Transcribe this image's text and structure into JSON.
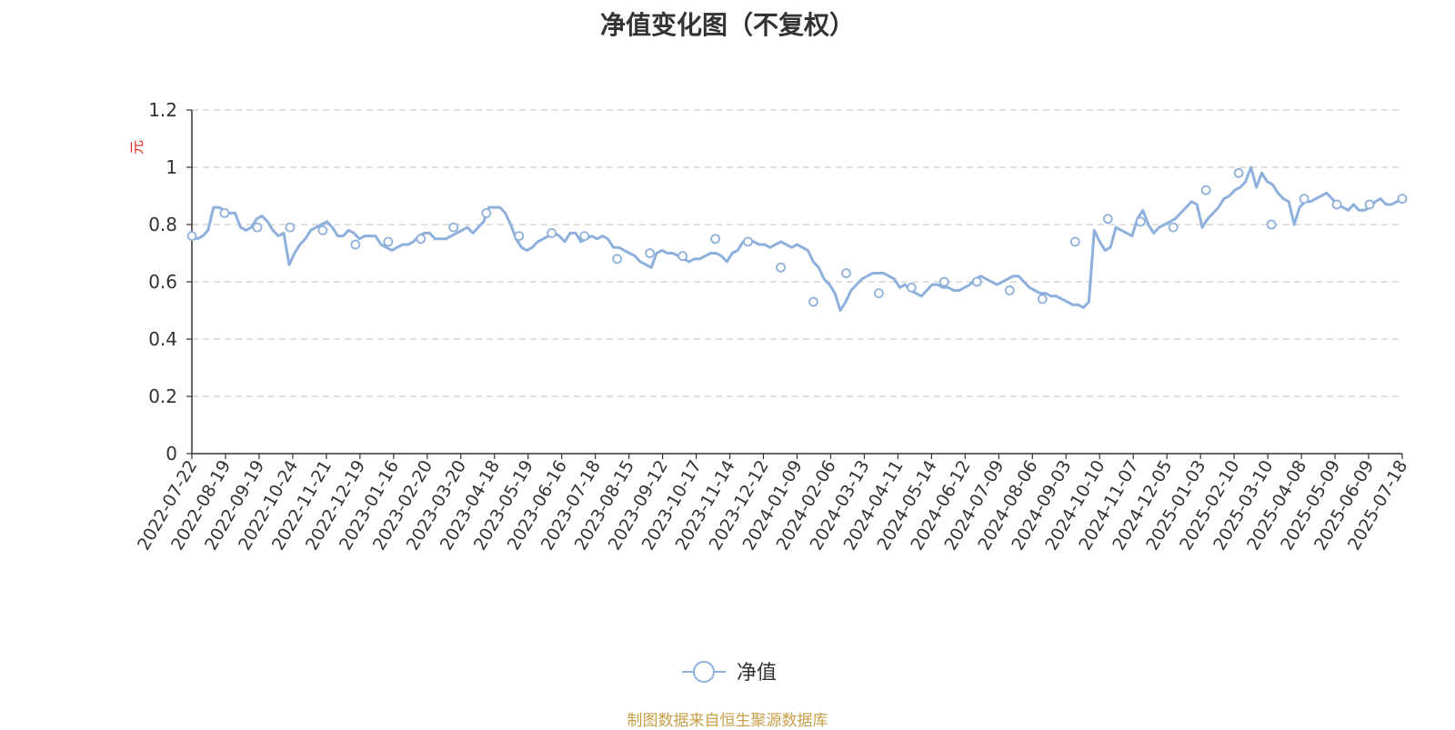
{
  "chart_data": {
    "type": "line",
    "title": "净值变化图（不复权）",
    "ylabel": "元",
    "ylim": [
      0,
      1.2
    ],
    "yticks": [
      0,
      0.2,
      0.4,
      0.6,
      0.8,
      1,
      1.2
    ],
    "grid": true,
    "legend": {
      "position": "bottom-center",
      "label": "净值"
    },
    "x_ticks": [
      "2022-07-22",
      "2022-08-19",
      "2022-09-19",
      "2022-10-24",
      "2022-11-21",
      "2022-12-19",
      "2023-01-16",
      "2023-02-20",
      "2023-03-20",
      "2023-04-18",
      "2023-05-19",
      "2023-06-16",
      "2023-07-18",
      "2023-08-15",
      "2023-09-12",
      "2023-10-17",
      "2023-11-14",
      "2023-12-12",
      "2024-01-09",
      "2024-02-06",
      "2024-03-13",
      "2024-04-11",
      "2024-05-14",
      "2024-06-12",
      "2024-07-09",
      "2024-08-06",
      "2024-09-03",
      "2024-10-10",
      "2024-11-07",
      "2024-12-05",
      "2025-01-03",
      "2025-02-10",
      "2025-03-10",
      "2025-04-08",
      "2025-05-09",
      "2025-06-09",
      "2025-07-18"
    ],
    "series": [
      {
        "name": "净值",
        "color": "#8eb0dc",
        "marker_values": [
          0.76,
          0.84,
          0.79,
          0.79,
          0.78,
          0.73,
          0.74,
          0.75,
          0.79,
          0.84,
          0.76,
          0.77,
          0.76,
          0.68,
          0.7,
          0.69,
          0.75,
          0.74,
          0.65,
          0.53,
          0.63,
          0.56,
          0.58,
          0.6,
          0.6,
          0.57,
          0.54,
          0.74,
          0.82,
          0.81,
          0.79,
          0.92,
          0.98,
          0.8,
          0.89,
          0.87,
          0.87,
          0.89
        ],
        "values": [
          0.76,
          0.75,
          0.76,
          0.78,
          0.86,
          0.86,
          0.85,
          0.84,
          0.84,
          0.79,
          0.78,
          0.79,
          0.82,
          0.83,
          0.81,
          0.78,
          0.76,
          0.77,
          0.66,
          0.7,
          0.73,
          0.75,
          0.78,
          0.79,
          0.8,
          0.81,
          0.79,
          0.76,
          0.76,
          0.78,
          0.77,
          0.75,
          0.76,
          0.76,
          0.76,
          0.73,
          0.72,
          0.71,
          0.72,
          0.73,
          0.73,
          0.74,
          0.76,
          0.77,
          0.77,
          0.75,
          0.75,
          0.75,
          0.76,
          0.77,
          0.78,
          0.79,
          0.77,
          0.79,
          0.81,
          0.86,
          0.86,
          0.86,
          0.84,
          0.8,
          0.75,
          0.72,
          0.71,
          0.72,
          0.74,
          0.75,
          0.76,
          0.77,
          0.76,
          0.74,
          0.77,
          0.77,
          0.74,
          0.75,
          0.76,
          0.75,
          0.76,
          0.75,
          0.72,
          0.72,
          0.71,
          0.7,
          0.69,
          0.67,
          0.66,
          0.65,
          0.7,
          0.71,
          0.7,
          0.7,
          0.69,
          0.68,
          0.67,
          0.68,
          0.68,
          0.69,
          0.7,
          0.7,
          0.69,
          0.67,
          0.7,
          0.71,
          0.74,
          0.75,
          0.74,
          0.73,
          0.73,
          0.72,
          0.73,
          0.74,
          0.73,
          0.72,
          0.73,
          0.72,
          0.71,
          0.67,
          0.65,
          0.61,
          0.59,
          0.56,
          0.5,
          0.53,
          0.57,
          0.59,
          0.61,
          0.62,
          0.63,
          0.63,
          0.63,
          0.62,
          0.61,
          0.58,
          0.59,
          0.57,
          0.56,
          0.55,
          0.57,
          0.59,
          0.59,
          0.58,
          0.58,
          0.57,
          0.57,
          0.58,
          0.59,
          0.61,
          0.62,
          0.61,
          0.6,
          0.59,
          0.6,
          0.61,
          0.62,
          0.62,
          0.6,
          0.58,
          0.57,
          0.56,
          0.56,
          0.55,
          0.55,
          0.54,
          0.53,
          0.52,
          0.52,
          0.51,
          0.53,
          0.78,
          0.74,
          0.71,
          0.72,
          0.79,
          0.78,
          0.77,
          0.76,
          0.82,
          0.85,
          0.8,
          0.77,
          0.79,
          0.8,
          0.81,
          0.82,
          0.84,
          0.86,
          0.88,
          0.87,
          0.79,
          0.82,
          0.84,
          0.86,
          0.89,
          0.9,
          0.92,
          0.93,
          0.95,
          1.0,
          0.93,
          0.98,
          0.95,
          0.94,
          0.91,
          0.89,
          0.88,
          0.8,
          0.86,
          0.88,
          0.88,
          0.89,
          0.9,
          0.91,
          0.89,
          0.87,
          0.86,
          0.85,
          0.87,
          0.85,
          0.85,
          0.86,
          0.88,
          0.89,
          0.87,
          0.87,
          0.88,
          0.89
        ]
      }
    ]
  },
  "source_note": "制图数据来自恒生聚源数据库"
}
